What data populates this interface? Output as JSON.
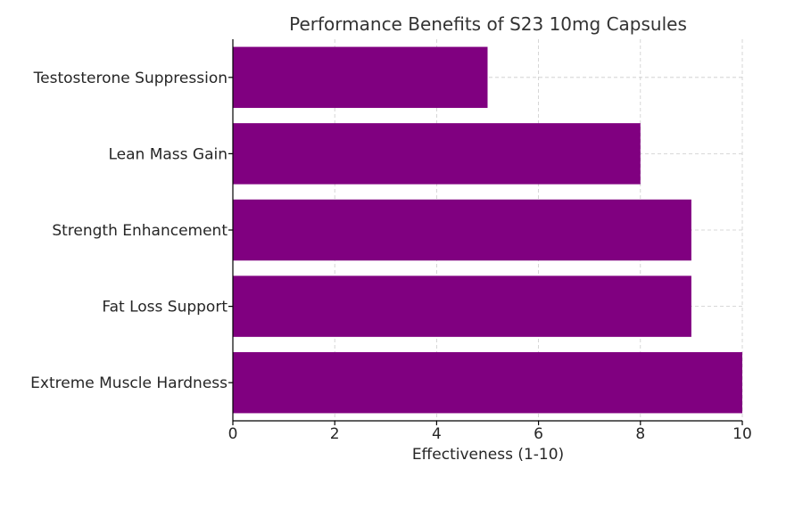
{
  "chart_data": {
    "type": "bar",
    "orientation": "horizontal",
    "title": "Performance Benefits of S23 10mg Capsules",
    "xlabel": "Effectiveness (1-10)",
    "ylabel": "",
    "categories": [
      "Testosterone Suppression",
      "Lean Mass Gain",
      "Strength Enhancement",
      "Fat Loss Support",
      "Extreme Muscle Hardness"
    ],
    "values": [
      5,
      8,
      9,
      9,
      10
    ],
    "xlim": [
      0,
      10
    ],
    "xticks": [
      0,
      2,
      4,
      6,
      8,
      10
    ],
    "grid": true,
    "bar_color": "#800080"
  }
}
